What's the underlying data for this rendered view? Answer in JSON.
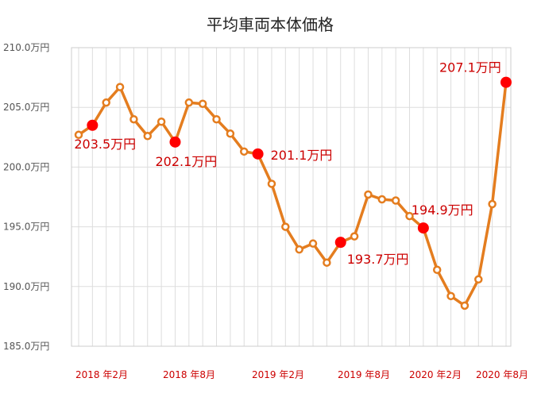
{
  "chart_data": {
    "type": "line",
    "title": "平均車両本体価格",
    "y_unit": "万円",
    "ylim": [
      185.0,
      210.0
    ],
    "y_ticks": [
      "210.0万円",
      "205.0万円",
      "200.0万円",
      "195.0万円",
      "190.0万円",
      "185.0万円"
    ],
    "x_tick_labels": [
      "2018 年2月",
      "2018 年8月",
      "2019 年2月",
      "2019 年8月",
      "2020 年2月",
      "2020 年8月"
    ],
    "grid": true,
    "series": [
      {
        "values": [
          202.7,
          203.5,
          205.4,
          206.7,
          204.0,
          202.6,
          203.8,
          202.1,
          205.4,
          205.3,
          204.0,
          202.8,
          201.3,
          201.1,
          198.6,
          195.0,
          193.1,
          193.6,
          192.0,
          193.7,
          194.2,
          197.7,
          197.3,
          197.2,
          195.9,
          194.9,
          191.4,
          189.2,
          188.4,
          190.6,
          196.9,
          207.1
        ]
      }
    ],
    "highlights": [
      {
        "index": 1,
        "label": "203.5万円"
      },
      {
        "index": 7,
        "label": "202.1万円"
      },
      {
        "index": 13,
        "label": "201.1万円"
      },
      {
        "index": 19,
        "label": "193.7万円"
      },
      {
        "index": 25,
        "label": "194.9万円"
      },
      {
        "index": 31,
        "label": "207.1万円"
      }
    ],
    "colors": {
      "line": "#e47d1f",
      "highlight_marker": "#ff0000",
      "highlight_label": "#cc0000",
      "grid": "#dddddd"
    }
  }
}
